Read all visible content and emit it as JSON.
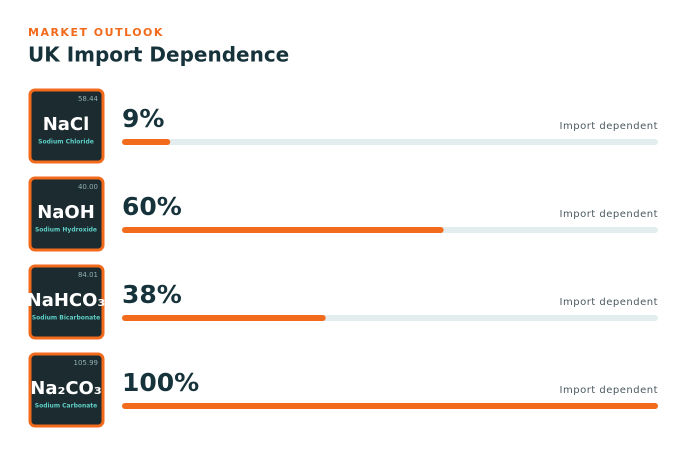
{
  "chart_data": {
    "type": "bar",
    "eyebrow": "MARKET OUTLOOK",
    "title": "UK Import Dependence",
    "categories": [
      "NaCl",
      "NaOH",
      "NaHCO₃",
      "Na₂CO₃"
    ],
    "names": [
      "Sodium Chloride",
      "Sodium Hydroxide",
      "Sodium Bicarbonate",
      "Sodium Carbonate"
    ],
    "weights": [
      "58.44",
      "40.00",
      "84.01",
      "105.99"
    ],
    "values": [
      9,
      60,
      38,
      100
    ],
    "value_labels": [
      "9%",
      "60%",
      "38%",
      "100%"
    ],
    "bar_label": "Import dependent",
    "xlim": [
      0,
      100
    ],
    "color": "#f26a1b",
    "track_color": "#e3ecef"
  }
}
